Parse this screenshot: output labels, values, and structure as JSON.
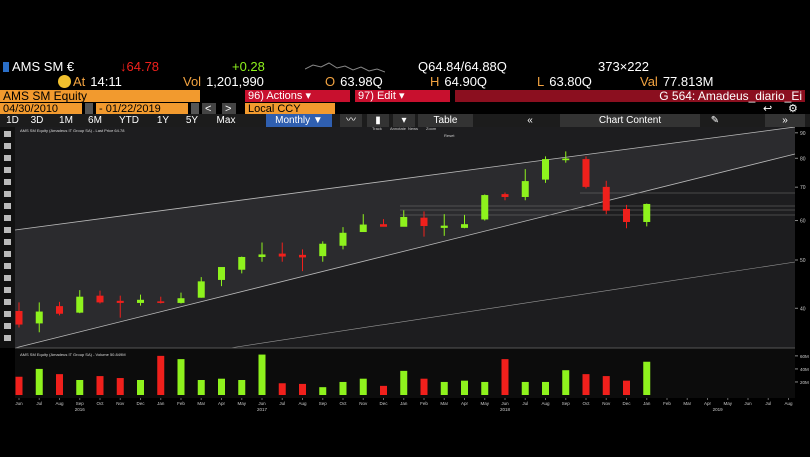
{
  "header": {
    "ticker": "AMS SM €",
    "last": "↓64.78",
    "change": "+0.28",
    "quote": "Q64.84/64.88Q",
    "size": "373×222",
    "fields": [
      {
        "label": "At",
        "value": "14:11"
      },
      {
        "label": "Vol",
        "value": "1,201,990"
      },
      {
        "label": "O",
        "value": "63.98Q"
      },
      {
        "label": "H",
        "value": "64.90Q"
      },
      {
        "label": "L",
        "value": "63.80Q"
      },
      {
        "label": "Val",
        "value": "77.813M"
      }
    ]
  },
  "menu": {
    "security": "AMS SM Equity",
    "actions": "96) Actions ▾",
    "edit": "97) Edit ▾",
    "chart_name": "G 564: Amadeus_diario_Ei"
  },
  "range": {
    "start": "04/30/2010",
    "end": "- 01/22/2019",
    "currency": "Local CCY"
  },
  "toolbar": {
    "periods": [
      "1D",
      "3D",
      "1M",
      "6M",
      "YTD",
      "1Y",
      "5Y",
      "Max"
    ],
    "frequency": "Monthly ▼",
    "table": "Table",
    "content": "Chart Content"
  },
  "chart_data": {
    "type": "candlestick",
    "legend": "AMS SM Equity (Amadeus IT Group SA) - Last Price 64.78",
    "tools": [
      "Track",
      "Annotate",
      "News",
      "Zoom",
      "Reset"
    ],
    "categories": [
      "Jun 2016",
      "Jul 2016",
      "Aug 2016",
      "Sep 2016",
      "Oct 2016",
      "Nov 2016",
      "Dec 2016",
      "Jan 2017",
      "Feb 2017",
      "Mar 2017",
      "Apr 2017",
      "May 2017",
      "Jun 2017",
      "Jul 2017",
      "Aug 2017",
      "Sep 2017",
      "Oct 2017",
      "Nov 2017",
      "Dec 2017",
      "Jan 2018",
      "Feb 2018",
      "Mar 2018",
      "Apr 2018",
      "May 2018",
      "Jun 2018",
      "Jul 2018",
      "Aug 2018",
      "Sep 2018",
      "Oct 2018",
      "Nov 2018",
      "Dec 2018",
      "Jan 2019"
    ],
    "open": [
      39.5,
      37.3,
      40.4,
      39.2,
      42.4,
      41.4,
      41.0,
      41.3,
      41.0,
      42.0,
      45.6,
      47.8,
      50.7,
      51.5,
      51.2,
      50.9,
      53.4,
      56.9,
      59.0,
      58.3,
      60.8,
      58.0,
      58.0,
      60.3,
      67.8,
      66.9,
      72.5,
      79.3,
      79.7,
      70.1,
      63.3,
      59.6
    ],
    "high": [
      41.1,
      41.1,
      41.2,
      43.5,
      43.4,
      42.4,
      42.6,
      42.2,
      43.0,
      46.2,
      48.3,
      50.8,
      54.2,
      54.2,
      52.5,
      54.5,
      58.2,
      61.8,
      60.4,
      62.9,
      62.6,
      61.8,
      61.6,
      67.7,
      68.3,
      76.1,
      80.7,
      82.6,
      80.7,
      72.1,
      64.5,
      64.9
    ],
    "low": [
      36.6,
      35.8,
      38.7,
      39.1,
      40.9,
      38.3,
      40.5,
      40.9,
      40.9,
      42.0,
      44.3,
      47.0,
      49.6,
      49.6,
      47.5,
      49.6,
      52.5,
      57.1,
      58.4,
      58.4,
      55.7,
      55.9,
      57.9,
      60.0,
      65.9,
      65.9,
      71.4,
      78.4,
      69.6,
      61.8,
      57.9,
      58.4
    ],
    "close": [
      37.1,
      39.4,
      39.0,
      42.2,
      41.1,
      41.0,
      41.6,
      41.0,
      41.9,
      45.3,
      48.4,
      50.7,
      51.3,
      50.8,
      50.6,
      53.9,
      56.7,
      58.9,
      58.3,
      61.0,
      58.5,
      58.6,
      59.0,
      67.5,
      66.9,
      72.0,
      79.7,
      79.9,
      70.1,
      62.8,
      59.6,
      64.78
    ],
    "up_color": "#8ef21d",
    "down_color": "#f0201c",
    "log_scale": true,
    "ylim": [
      33.6,
      91.6
    ],
    "yticks": [
      40,
      50,
      60,
      70,
      80,
      90
    ],
    "x_labels": [
      "Jun",
      "Jul",
      "Aug",
      "Sep",
      "Oct",
      "Nov",
      "Dec",
      "Jan",
      "Feb",
      "Mar",
      "Apr",
      "May",
      "Jun",
      "Jul",
      "Aug",
      "Sep",
      "Oct",
      "Nov",
      "Dec",
      "Jan",
      "Feb",
      "Mar",
      "Apr",
      "May",
      "Jun",
      "Jul",
      "Aug",
      "Sep",
      "Oct",
      "Nov",
      "Dec",
      "Jan",
      "Feb",
      "Mar",
      "Apr",
      "May",
      "Jun",
      "Jul",
      "Aug"
    ],
    "years": [
      "2016",
      "2017",
      "2018",
      "2019"
    ],
    "volume": {
      "legend": "AMS SM Equity (Amadeus IT Group SA) - Volume 50.849M",
      "values": [
        28,
        40,
        32,
        23,
        29,
        26,
        23,
        60,
        55,
        23,
        25,
        23,
        62,
        18,
        17,
        12,
        20,
        25,
        14,
        37,
        25,
        20,
        22,
        20,
        55,
        20,
        20,
        38,
        32,
        29,
        22,
        51
      ],
      "ylim": [
        0,
        69
      ],
      "yticks": [
        {
          "value": 20,
          "label": "20M"
        },
        {
          "value": 40,
          "label": "40M"
        },
        {
          "value": 60,
          "label": "60M"
        }
      ]
    }
  }
}
